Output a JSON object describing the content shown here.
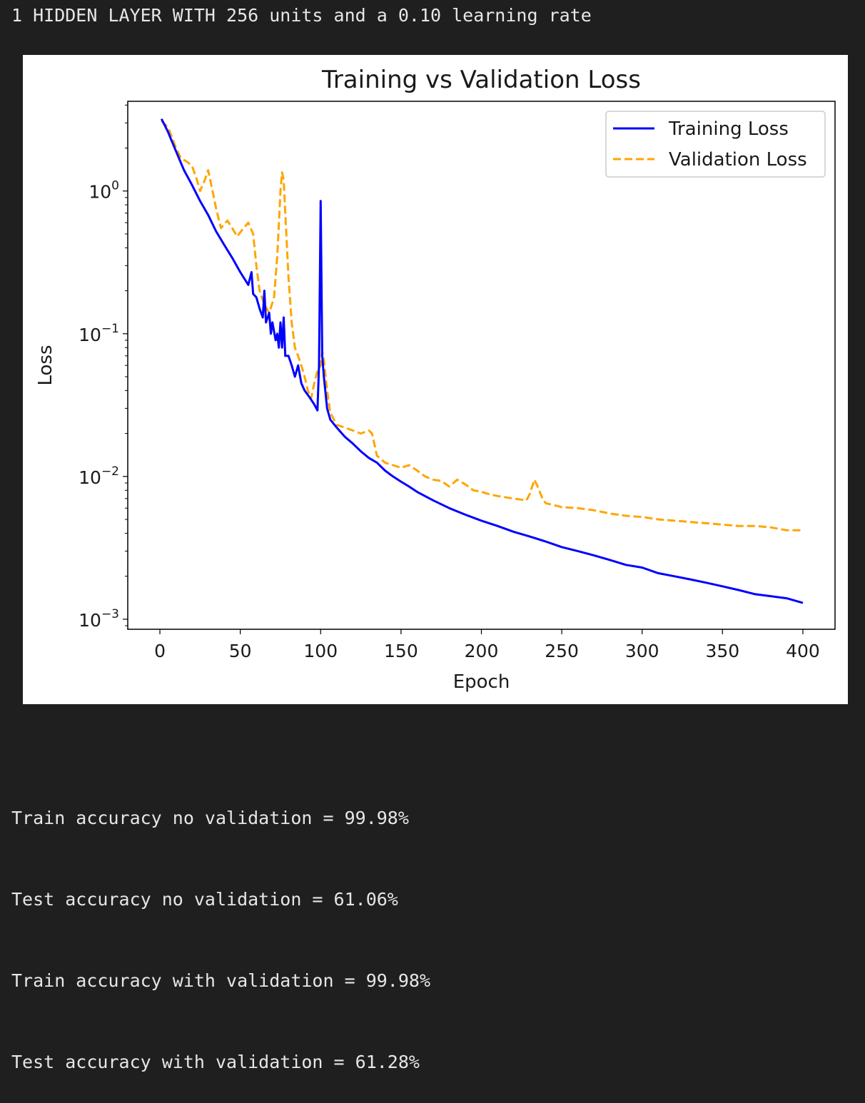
{
  "header": {
    "text": "1 HIDDEN LAYER WITH 256 units and a 0.10 learning rate"
  },
  "chart_data": {
    "type": "line",
    "title": "Training vs Validation Loss",
    "xlabel": "Epoch",
    "ylabel": "Loss",
    "yscale": "log",
    "xlim": [
      -20,
      420
    ],
    "ylim": [
      0.00085,
      4.25
    ],
    "xticks": [
      0,
      50,
      100,
      150,
      200,
      250,
      300,
      350,
      400
    ],
    "yticks": [
      {
        "value": 1,
        "label": "10",
        "exp": "0"
      },
      {
        "value": 0.1,
        "label": "10",
        "exp": "−1"
      },
      {
        "value": 0.01,
        "label": "10",
        "exp": "−2"
      },
      {
        "value": 0.001,
        "label": "10",
        "exp": "−3"
      }
    ],
    "grid": false,
    "legend_position": "top-right",
    "series": [
      {
        "name": "Training Loss",
        "color": "#0000ff",
        "style": "solid",
        "points": [
          [
            1,
            3.2
          ],
          [
            5,
            2.6
          ],
          [
            10,
            1.9
          ],
          [
            15,
            1.4
          ],
          [
            20,
            1.1
          ],
          [
            25,
            0.85
          ],
          [
            30,
            0.68
          ],
          [
            35,
            0.52
          ],
          [
            40,
            0.42
          ],
          [
            45,
            0.34
          ],
          [
            50,
            0.27
          ],
          [
            55,
            0.22
          ],
          [
            57,
            0.27
          ],
          [
            58,
            0.19
          ],
          [
            60,
            0.18
          ],
          [
            62,
            0.15
          ],
          [
            64,
            0.13
          ],
          [
            65,
            0.2
          ],
          [
            66,
            0.12
          ],
          [
            68,
            0.14
          ],
          [
            69,
            0.1
          ],
          [
            70,
            0.12
          ],
          [
            72,
            0.09
          ],
          [
            73,
            0.1
          ],
          [
            74,
            0.08
          ],
          [
            75,
            0.12
          ],
          [
            76,
            0.08
          ],
          [
            77,
            0.13
          ],
          [
            78,
            0.07
          ],
          [
            80,
            0.07
          ],
          [
            82,
            0.06
          ],
          [
            84,
            0.05
          ],
          [
            86,
            0.06
          ],
          [
            88,
            0.045
          ],
          [
            90,
            0.04
          ],
          [
            93,
            0.036
          ],
          [
            96,
            0.032
          ],
          [
            98,
            0.029
          ],
          [
            99,
            0.06
          ],
          [
            100,
            0.85
          ],
          [
            101,
            0.07
          ],
          [
            102,
            0.05
          ],
          [
            104,
            0.03
          ],
          [
            106,
            0.025
          ],
          [
            110,
            0.022
          ],
          [
            115,
            0.019
          ],
          [
            120,
            0.017
          ],
          [
            125,
            0.015
          ],
          [
            130,
            0.0135
          ],
          [
            135,
            0.0125
          ],
          [
            140,
            0.011
          ],
          [
            145,
            0.01
          ],
          [
            150,
            0.0092
          ],
          [
            155,
            0.0085
          ],
          [
            160,
            0.0078
          ],
          [
            170,
            0.0068
          ],
          [
            180,
            0.006
          ],
          [
            190,
            0.0054
          ],
          [
            200,
            0.0049
          ],
          [
            210,
            0.0045
          ],
          [
            220,
            0.0041
          ],
          [
            230,
            0.0038
          ],
          [
            240,
            0.0035
          ],
          [
            250,
            0.0032
          ],
          [
            260,
            0.003
          ],
          [
            270,
            0.0028
          ],
          [
            280,
            0.0026
          ],
          [
            290,
            0.0024
          ],
          [
            300,
            0.0023
          ],
          [
            310,
            0.0021
          ],
          [
            320,
            0.002
          ],
          [
            330,
            0.0019
          ],
          [
            340,
            0.0018
          ],
          [
            350,
            0.0017
          ],
          [
            360,
            0.0016
          ],
          [
            370,
            0.0015
          ],
          [
            380,
            0.00145
          ],
          [
            390,
            0.0014
          ],
          [
            400,
            0.0013
          ]
        ]
      },
      {
        "name": "Validation Loss",
        "color": "#ffa500",
        "style": "dashed",
        "points": [
          [
            1,
            3.1
          ],
          [
            5,
            2.8
          ],
          [
            8,
            2.3
          ],
          [
            10,
            2.0
          ],
          [
            13,
            1.7
          ],
          [
            17,
            1.6
          ],
          [
            20,
            1.5
          ],
          [
            23,
            1.2
          ],
          [
            25,
            1.0
          ],
          [
            28,
            1.2
          ],
          [
            30,
            1.4
          ],
          [
            32,
            1.1
          ],
          [
            35,
            0.75
          ],
          [
            38,
            0.55
          ],
          [
            42,
            0.62
          ],
          [
            45,
            0.55
          ],
          [
            48,
            0.48
          ],
          [
            52,
            0.55
          ],
          [
            55,
            0.6
          ],
          [
            58,
            0.5
          ],
          [
            60,
            0.3
          ],
          [
            62,
            0.2
          ],
          [
            65,
            0.16
          ],
          [
            68,
            0.14
          ],
          [
            71,
            0.18
          ],
          [
            73,
            0.35
          ],
          [
            75,
            1.0
          ],
          [
            76,
            1.35
          ],
          [
            77,
            1.2
          ],
          [
            78,
            0.7
          ],
          [
            80,
            0.25
          ],
          [
            82,
            0.12
          ],
          [
            84,
            0.08
          ],
          [
            86,
            0.07
          ],
          [
            88,
            0.06
          ],
          [
            90,
            0.05
          ],
          [
            92,
            0.04
          ],
          [
            94,
            0.035
          ],
          [
            96,
            0.045
          ],
          [
            98,
            0.055
          ],
          [
            100,
            0.06
          ],
          [
            101,
            0.075
          ],
          [
            102,
            0.065
          ],
          [
            104,
            0.04
          ],
          [
            106,
            0.028
          ],
          [
            110,
            0.023
          ],
          [
            115,
            0.022
          ],
          [
            120,
            0.021
          ],
          [
            125,
            0.02
          ],
          [
            130,
            0.021
          ],
          [
            132,
            0.02
          ],
          [
            135,
            0.014
          ],
          [
            140,
            0.0125
          ],
          [
            145,
            0.012
          ],
          [
            150,
            0.0115
          ],
          [
            155,
            0.012
          ],
          [
            160,
            0.011
          ],
          [
            165,
            0.01
          ],
          [
            170,
            0.0095
          ],
          [
            175,
            0.0093
          ],
          [
            180,
            0.0085
          ],
          [
            185,
            0.0095
          ],
          [
            190,
            0.0088
          ],
          [
            195,
            0.008
          ],
          [
            200,
            0.0078
          ],
          [
            205,
            0.0075
          ],
          [
            210,
            0.0073
          ],
          [
            220,
            0.007
          ],
          [
            228,
            0.0068
          ],
          [
            230,
            0.0075
          ],
          [
            233,
            0.0095
          ],
          [
            235,
            0.0085
          ],
          [
            238,
            0.007
          ],
          [
            240,
            0.0065
          ],
          [
            245,
            0.0063
          ],
          [
            250,
            0.0061
          ],
          [
            260,
            0.006
          ],
          [
            270,
            0.0058
          ],
          [
            280,
            0.0055
          ],
          [
            290,
            0.0053
          ],
          [
            300,
            0.0052
          ],
          [
            310,
            0.005
          ],
          [
            320,
            0.0049
          ],
          [
            330,
            0.0048
          ],
          [
            340,
            0.0047
          ],
          [
            350,
            0.0046
          ],
          [
            360,
            0.0045
          ],
          [
            370,
            0.0045
          ],
          [
            380,
            0.0044
          ],
          [
            390,
            0.0042
          ],
          [
            400,
            0.0042
          ]
        ]
      }
    ]
  },
  "stats": [
    "Train accuracy no validation = 99.98%",
    "Test accuracy no validation = 61.06%",
    "Train accuracy with validation = 99.98%",
    "Test accuracy with validation = 61.28%"
  ]
}
